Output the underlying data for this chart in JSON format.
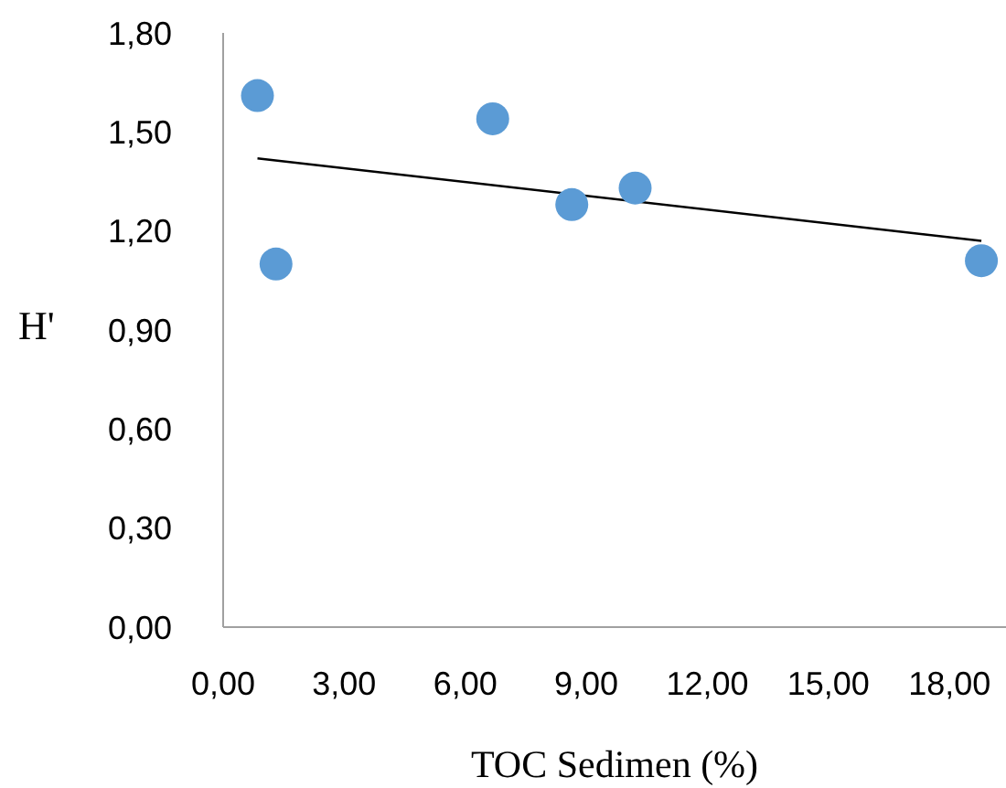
{
  "chart_data": {
    "type": "scatter",
    "xlabel": "TOC Sedimen (%)",
    "ylabel": "H'",
    "xlim": [
      0,
      19.4
    ],
    "ylim": [
      0,
      1.8
    ],
    "xticks": [
      {
        "value": 0,
        "label": "0,00"
      },
      {
        "value": 3,
        "label": "3,00"
      },
      {
        "value": 6,
        "label": "6,00"
      },
      {
        "value": 9,
        "label": "9,00"
      },
      {
        "value": 12,
        "label": "12,00"
      },
      {
        "value": 15,
        "label": "15,00"
      },
      {
        "value": 18,
        "label": "18,00"
      }
    ],
    "yticks": [
      {
        "value": 0,
        "label": "0,00"
      },
      {
        "value": 0.3,
        "label": "0,30"
      },
      {
        "value": 0.6,
        "label": "0,60"
      },
      {
        "value": 0.9,
        "label": "0,90"
      },
      {
        "value": 1.2,
        "label": "1,20"
      },
      {
        "value": 1.5,
        "label": "1,50"
      },
      {
        "value": 1.8,
        "label": "1,80"
      }
    ],
    "grid": false,
    "series": [
      {
        "color": "#5b9bd5",
        "marker": "circle",
        "x": [
          0.85,
          1.31,
          6.68,
          8.64,
          10.21,
          18.79
        ],
        "values": [
          1.61,
          1.1,
          1.54,
          1.28,
          1.33,
          1.11
        ]
      },
      {
        "type": "line",
        "color": "#000000",
        "marker": "none",
        "x": [
          0.85,
          18.79
        ],
        "values": [
          1.42,
          1.17
        ]
      }
    ]
  }
}
